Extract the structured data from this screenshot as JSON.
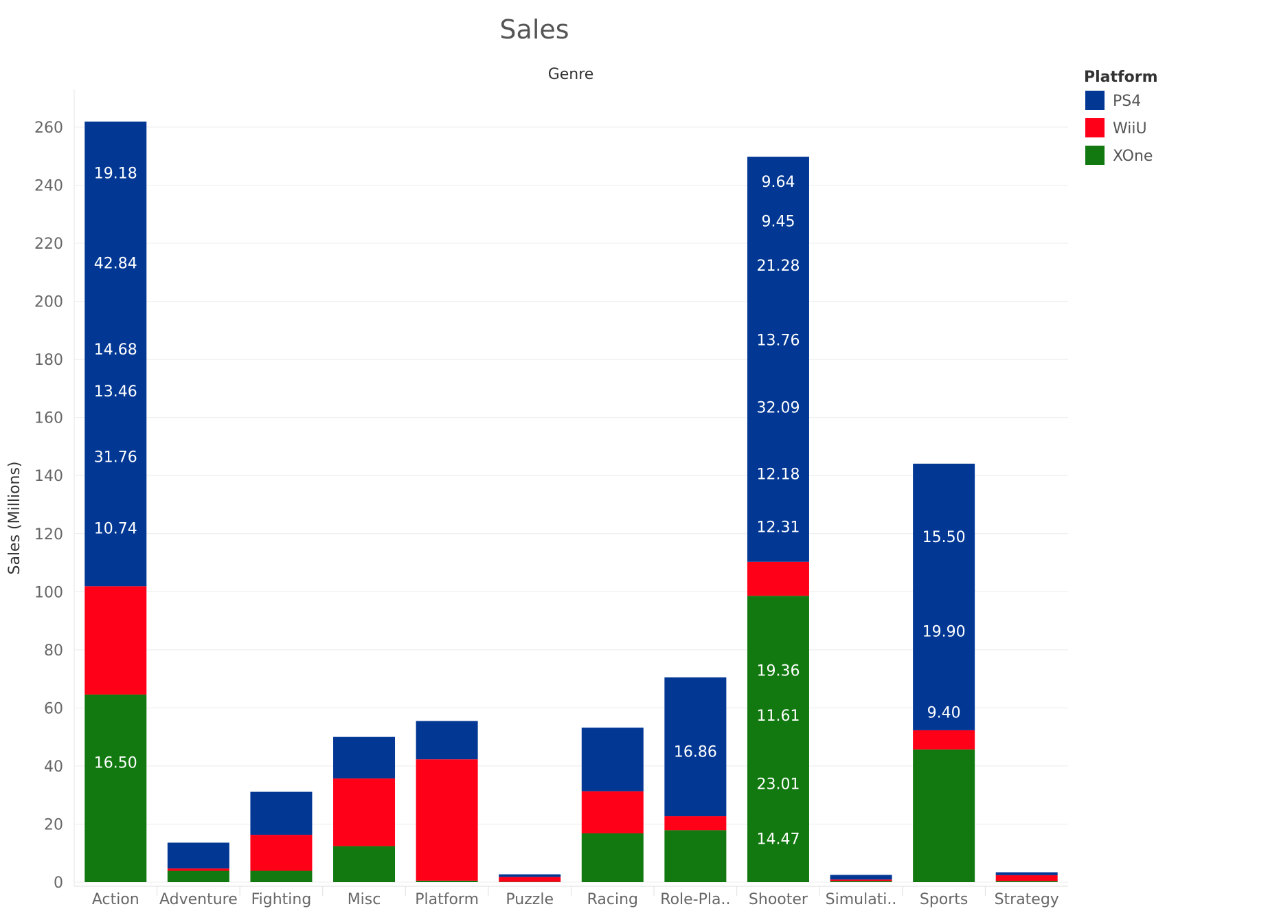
{
  "chart_data": {
    "type": "bar",
    "stacked": true,
    "title": "Sales",
    "column_header": "Genre",
    "ylabel": "Sales (Millions)",
    "ylim": [
      0,
      270
    ],
    "yticks": [
      0,
      20,
      40,
      60,
      80,
      100,
      120,
      140,
      160,
      180,
      200,
      220,
      240,
      260
    ],
    "grid": true,
    "legend_title": "Platform",
    "legend_position": "top-right",
    "categories": [
      "Action",
      "Adventure",
      "Fighting",
      "Misc",
      "Platform",
      "Puzzle",
      "Racing",
      "Role-Pla..",
      "Shooter",
      "Simulati..",
      "Sports",
      "Strategy"
    ],
    "series": [
      {
        "name": "XOne",
        "color": "#11790f",
        "values": [
          64.6,
          3.9,
          3.9,
          12.4,
          0.5,
          0.1,
          16.8,
          17.9,
          98.6,
          0.4,
          45.7,
          0.4
        ]
      },
      {
        "name": "WiiU",
        "color": "#ff0019",
        "values": [
          37.3,
          0.8,
          12.4,
          23.3,
          41.8,
          1.7,
          14.5,
          4.8,
          11.7,
          0.5,
          6.6,
          2.0
        ]
      },
      {
        "name": "PS4",
        "color": "#023894",
        "values": [
          160.0,
          8.9,
          14.8,
          14.3,
          13.2,
          0.9,
          21.9,
          47.8,
          139.5,
          1.6,
          91.8,
          1.0
        ]
      }
    ],
    "segment_labels": [
      {
        "category": "Action",
        "y": 41.3,
        "text": "16.50"
      },
      {
        "category": "Action",
        "y": 121.9,
        "text": "10.74"
      },
      {
        "category": "Action",
        "y": 146.5,
        "text": "31.76"
      },
      {
        "category": "Action",
        "y": 169.1,
        "text": "13.46"
      },
      {
        "category": "Action",
        "y": 183.6,
        "text": "14.68"
      },
      {
        "category": "Action",
        "y": 213.3,
        "text": "42.84"
      },
      {
        "category": "Action",
        "y": 244.3,
        "text": "19.18"
      },
      {
        "category": "Role-Pla..",
        "y": 45.1,
        "text": "16.86"
      },
      {
        "category": "Shooter",
        "y": 15.0,
        "text": "14.47"
      },
      {
        "category": "Shooter",
        "y": 34.0,
        "text": "23.01"
      },
      {
        "category": "Shooter",
        "y": 57.5,
        "text": "11.61"
      },
      {
        "category": "Shooter",
        "y": 73.0,
        "text": "19.36"
      },
      {
        "category": "Shooter",
        "y": 122.4,
        "text": "12.31"
      },
      {
        "category": "Shooter",
        "y": 140.6,
        "text": "12.18"
      },
      {
        "category": "Shooter",
        "y": 163.6,
        "text": "32.09"
      },
      {
        "category": "Shooter",
        "y": 186.8,
        "text": "13.76"
      },
      {
        "category": "Shooter",
        "y": 212.4,
        "text": "21.28"
      },
      {
        "category": "Shooter",
        "y": 227.7,
        "text": "9.45"
      },
      {
        "category": "Shooter",
        "y": 241.3,
        "text": "9.64"
      },
      {
        "category": "Sports",
        "y": 58.5,
        "text": "9.40"
      },
      {
        "category": "Sports",
        "y": 86.5,
        "text": "19.90"
      },
      {
        "category": "Sports",
        "y": 119.0,
        "text": "15.50"
      }
    ]
  },
  "legend_items": [
    {
      "name": "PS4",
      "color": "#023894"
    },
    {
      "name": "WiiU",
      "color": "#ff0019"
    },
    {
      "name": "XOne",
      "color": "#11790f"
    }
  ]
}
